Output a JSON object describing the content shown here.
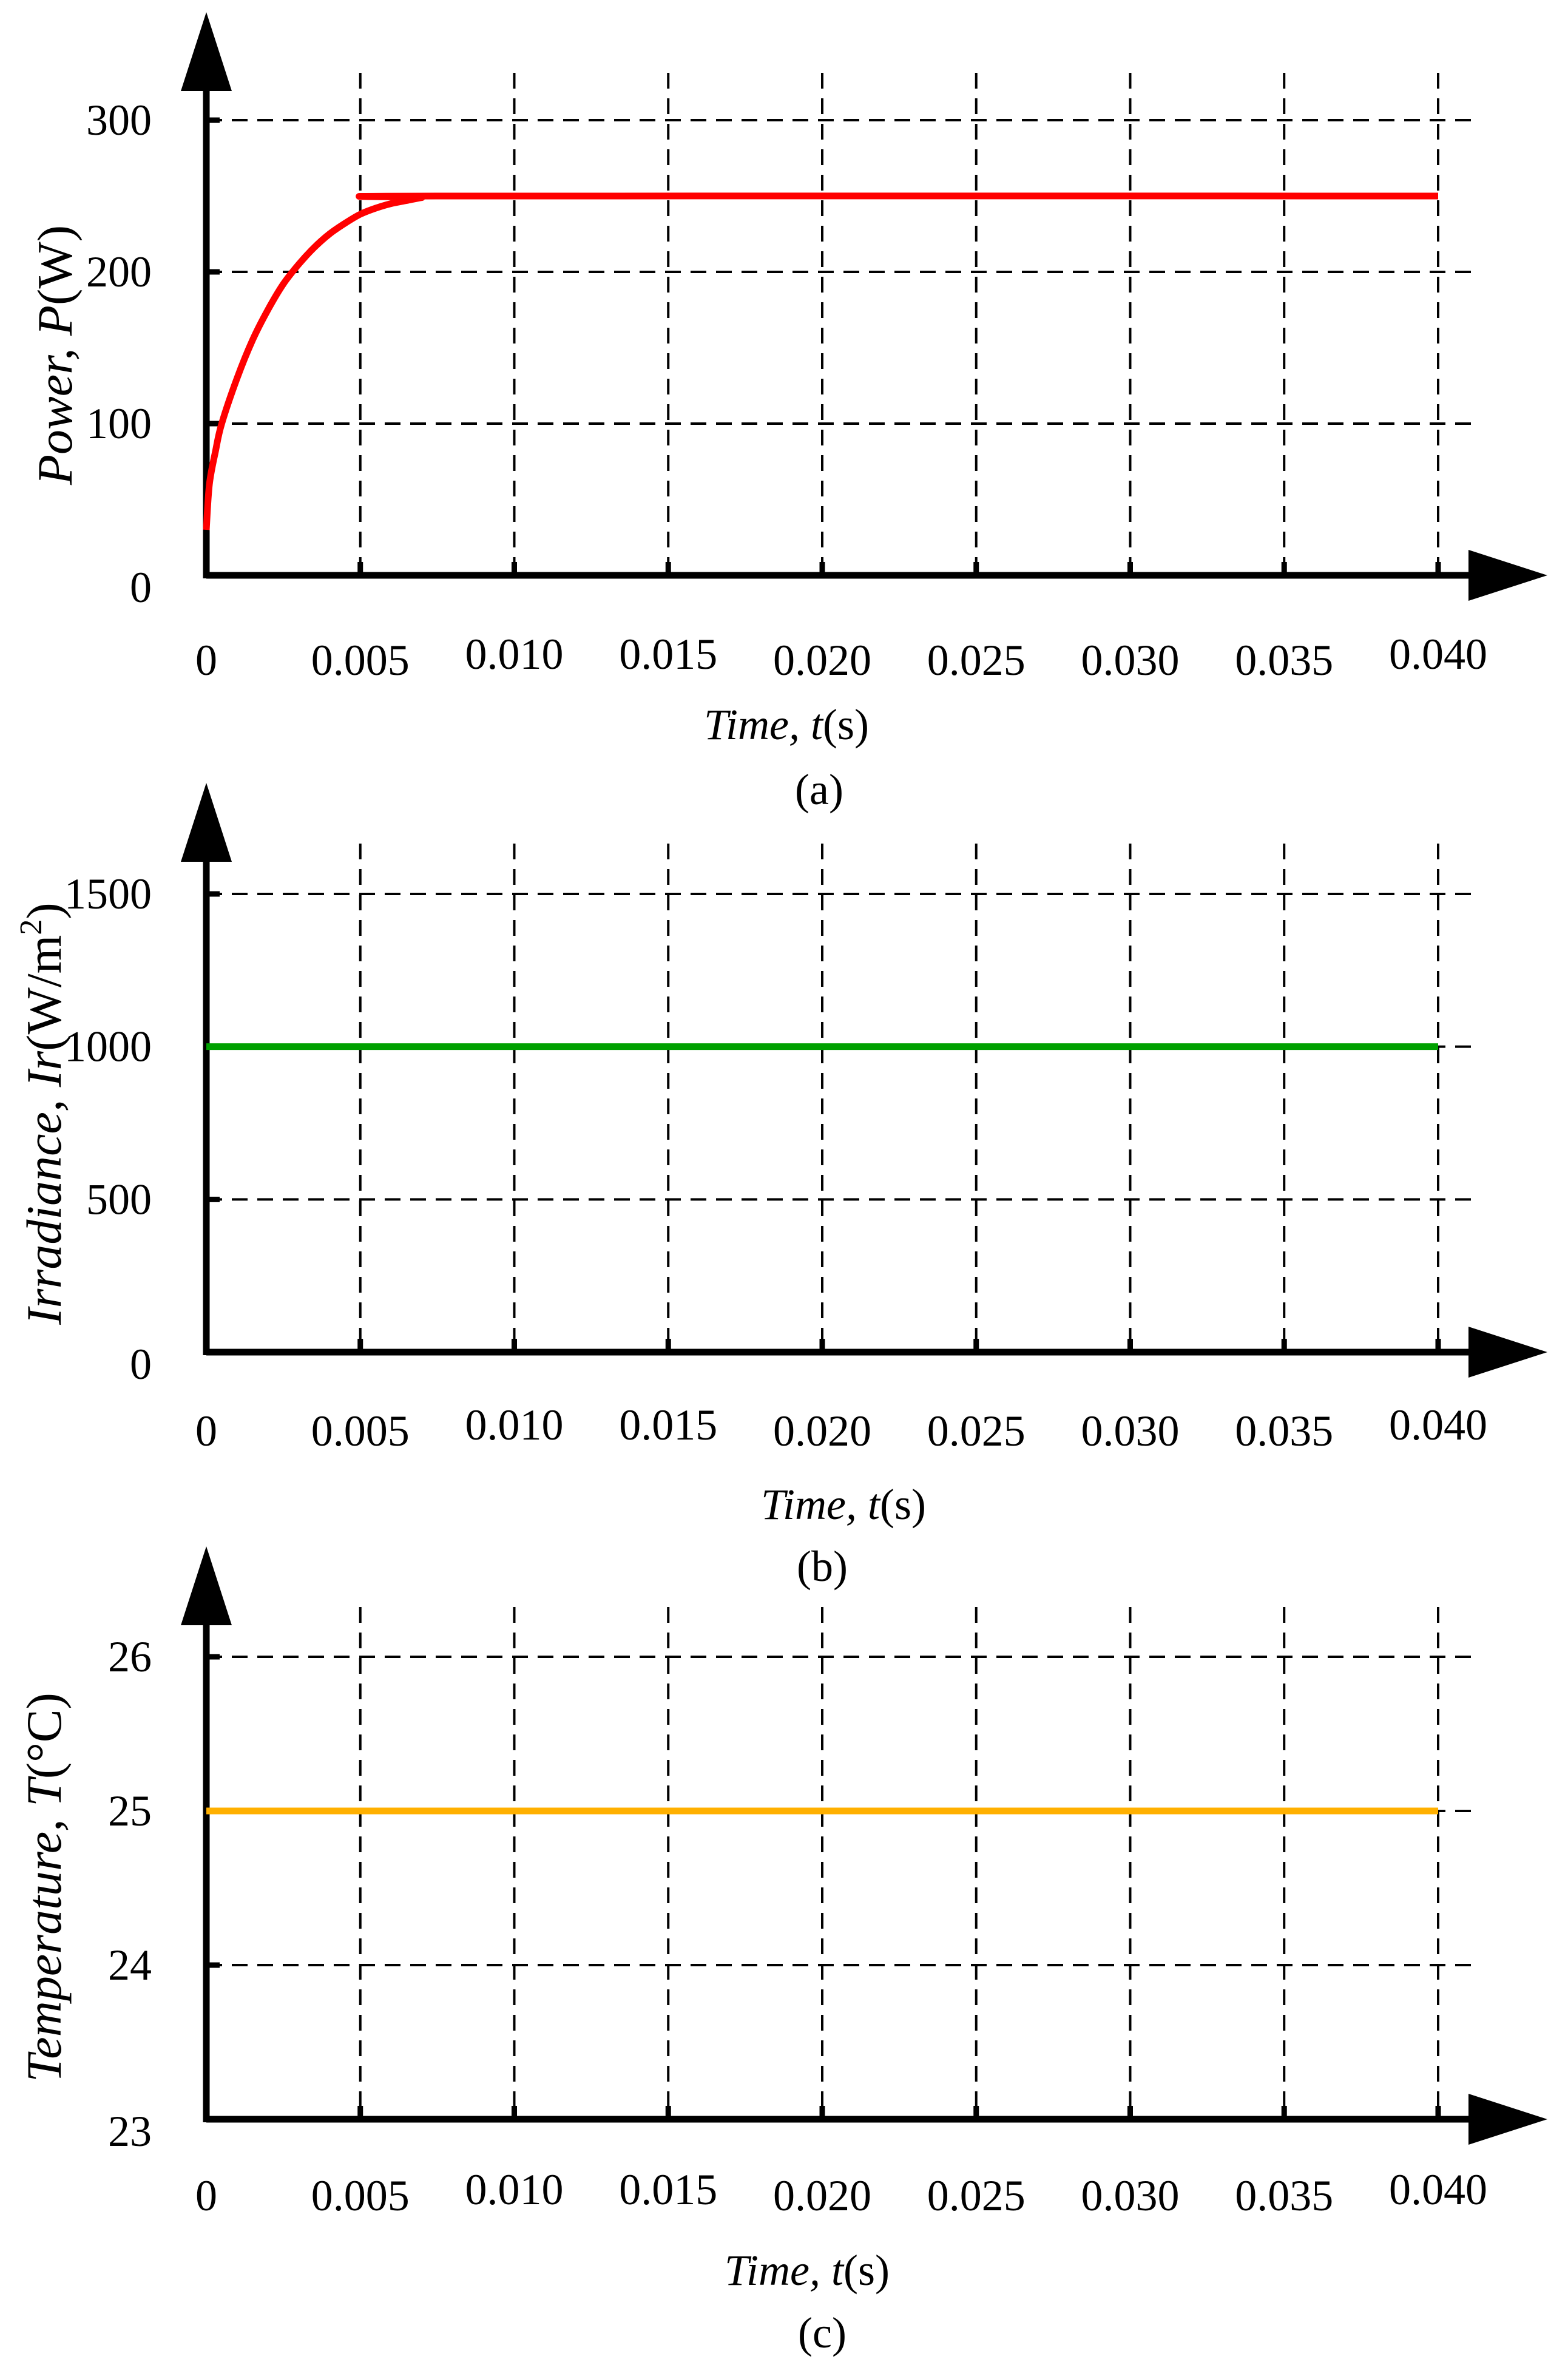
{
  "figure": {
    "colors": {
      "axis": "#000000",
      "grid": "#000000",
      "power": "#ff0000",
      "irradiance": "#00a000",
      "temperature": "#ffb000"
    }
  },
  "chart_data": [
    {
      "type": "line",
      "panel": "a",
      "caption": "(a)",
      "xlabel": {
        "italic": "Time, t",
        "unit": "(s)"
      },
      "ylabel": {
        "italic_name": "Power, ",
        "italic_symbol": "P",
        "unit": "(W)"
      },
      "xticks": [
        0,
        0.005,
        0.01,
        0.015,
        0.02,
        0.025,
        0.03,
        0.035,
        0.04
      ],
      "xtick_labels": [
        "0",
        "0.005",
        "0.010",
        "0.015",
        "0.020",
        "0.025",
        "0.030",
        "0.035",
        "0.040"
      ],
      "yticks": [
        0,
        100,
        200,
        300
      ],
      "ytick_labels": [
        "0",
        "100",
        "200",
        "300"
      ],
      "xlim": [
        0,
        0.0415
      ],
      "ylim": [
        0,
        350
      ],
      "grid": true,
      "series": [
        {
          "name": "Power",
          "color": "#ff0000",
          "x": [
            0,
            0.0001,
            0.0003,
            0.0005,
            0.001,
            0.0015,
            0.002,
            0.0025,
            0.003,
            0.0035,
            0.004,
            0.0045,
            0.005,
            0.0055,
            0.006,
            0.0065,
            0.007,
            0.0075,
            0.04
          ],
          "y": [
            30,
            60,
            82,
            100,
            130,
            155,
            175,
            192,
            205,
            216,
            225,
            232,
            238,
            242,
            245,
            247,
            249,
            250,
            250
          ]
        }
      ]
    },
    {
      "type": "line",
      "panel": "b",
      "caption": "(b)",
      "xlabel": {
        "italic": "Time, t",
        "unit": "(s)"
      },
      "ylabel": {
        "italic_name": "Irradiance, ",
        "italic_symbol": "Ir",
        "unit": "(W/m",
        "unit_sup": "2",
        "unit_close": ")"
      },
      "xticks": [
        0,
        0.005,
        0.01,
        0.015,
        0.02,
        0.025,
        0.03,
        0.035,
        0.04
      ],
      "xtick_labels": [
        "0",
        "0.005",
        "0.010",
        "0.015",
        "0.020",
        "0.025",
        "0.030",
        "0.035",
        "0.040"
      ],
      "yticks": [
        0,
        500,
        1000,
        1500
      ],
      "ytick_labels": [
        "0",
        "500",
        "1000",
        "1500"
      ],
      "xlim": [
        0,
        0.0415
      ],
      "ylim": [
        0,
        1750
      ],
      "grid": true,
      "series": [
        {
          "name": "Irradiance",
          "color": "#00a000",
          "x": [
            0,
            0.04
          ],
          "y": [
            1000,
            1000
          ]
        }
      ]
    },
    {
      "type": "line",
      "panel": "c",
      "caption": "(c)",
      "xlabel": {
        "italic": "Time, t",
        "unit": "(s)"
      },
      "ylabel": {
        "italic_name": "Temperature, ",
        "italic_symbol": "T",
        "unit": "(°C)"
      },
      "xticks": [
        0,
        0.005,
        0.01,
        0.015,
        0.02,
        0.025,
        0.03,
        0.035,
        0.04
      ],
      "xtick_labels": [
        "0",
        "0.005",
        "0.010",
        "0.015",
        "0.020",
        "0.025",
        "0.030",
        "0.035",
        "0.040"
      ],
      "yticks": [
        23,
        24,
        25,
        26
      ],
      "ytick_labels": [
        "23",
        "24",
        "25",
        "26"
      ],
      "xlim": [
        0,
        0.0415
      ],
      "ylim": [
        23,
        26.5
      ],
      "grid": true,
      "series": [
        {
          "name": "Temperature",
          "color": "#ffb000",
          "x": [
            0,
            0.04
          ],
          "y": [
            25,
            25
          ]
        }
      ]
    }
  ]
}
